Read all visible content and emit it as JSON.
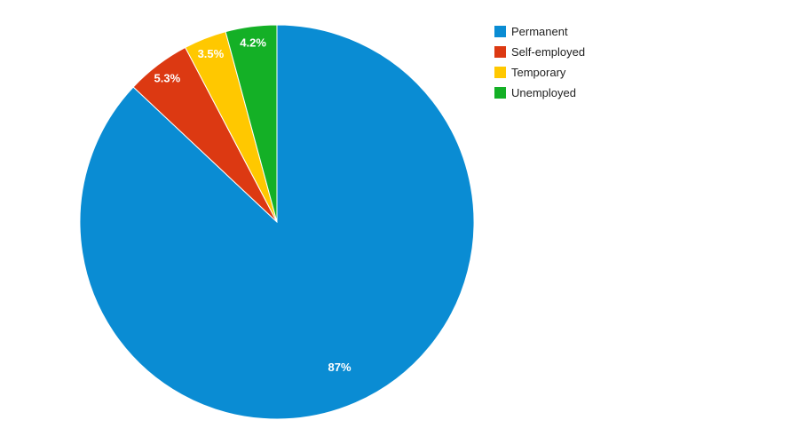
{
  "chart_data": {
    "type": "pie",
    "title": "",
    "slices": [
      {
        "name": "Permanent",
        "value": 87.0,
        "label": "87%",
        "color": "#0A8CD3"
      },
      {
        "name": "Self-employed",
        "value": 5.3,
        "label": "5.3%",
        "color": "#DC3912"
      },
      {
        "name": "Temporary",
        "value": 3.5,
        "label": "3.5%",
        "color": "#FFC800"
      },
      {
        "name": "Unemployed",
        "value": 4.2,
        "label": "4.2%",
        "color": "#14B026"
      }
    ],
    "legend": {
      "position": "top-right",
      "entries": [
        "Permanent",
        "Self-employed",
        "Temporary",
        "Unemployed"
      ]
    },
    "start_angle": "12 o'clock, clockwise"
  }
}
